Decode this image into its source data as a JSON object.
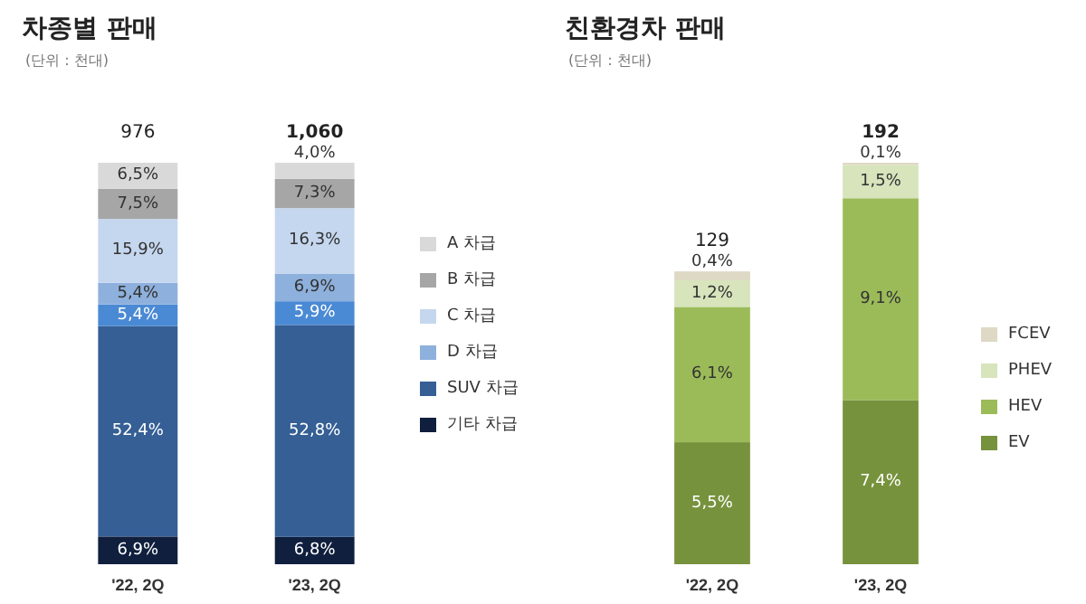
{
  "chart_data": [
    {
      "type": "bar",
      "title": "차종별 판매",
      "subtitle": "(단위 : 천대)",
      "stacked": true,
      "legend": "right",
      "categories": [
        "'22, 2Q",
        "'23, 2Q"
      ],
      "annotations": [
        {
          "text": "976",
          "x": "'22, 2Q",
          "y": 100
        },
        {
          "text": "1,060",
          "x": "'23, 2Q",
          "y": 100
        }
      ],
      "series": [
        {
          "name": "기타 차급",
          "color": "#0f1f3d",
          "values": [
            6.9,
            6.8
          ],
          "value_labels": [
            "6,9%",
            "6,8%"
          ]
        },
        {
          "name": "SUV 차급",
          "color": "#355f95",
          "values": [
            52.4,
            52.8
          ],
          "value_labels": [
            "52,4%",
            "52,8%"
          ]
        },
        {
          "color": "#4a8ad4",
          "values": [
            5.4,
            5.9
          ],
          "value_labels": [
            "5,4%",
            "5,9%"
          ]
        },
        {
          "name": "D 차급",
          "color": "#8eb0dc",
          "values": [
            5.4,
            6.9
          ],
          "value_labels": [
            "5,4%",
            "6,9%"
          ]
        },
        {
          "name": "C 차급",
          "color": "#c5d7ef",
          "values": [
            15.9,
            16.3
          ],
          "value_labels": [
            "15,9%",
            "16,3%"
          ]
        },
        {
          "name": "B 차급",
          "color": "#a6a6a6",
          "values": [
            7.5,
            7.3
          ],
          "value_labels": [
            "7,5%",
            "7,3%"
          ]
        },
        {
          "name": "A 차급",
          "color": "#d9d9d9",
          "values": [
            6.5,
            4.0
          ],
          "value_labels": [
            "6,5%",
            "4,0%"
          ]
        }
      ]
    },
    {
      "type": "bar",
      "title": "친환경차 판매",
      "subtitle": "(단위 : 천대)",
      "stacked": true,
      "legend": "right",
      "categories": [
        "'22, 2Q",
        "'23, 2Q"
      ],
      "annotations": [
        {
          "text": "129",
          "x": "'22, 2Q",
          "y": 13.2
        },
        {
          "text": "192",
          "x": "'23, 2Q",
          "y": 18.1
        }
      ],
      "series": [
        {
          "name": "EV",
          "color": "#76923c",
          "values": [
            5.5,
            7.4
          ],
          "value_labels": [
            "5,5%",
            "7,4%"
          ]
        },
        {
          "name": "HEV",
          "color": "#9bbb59",
          "values": [
            6.1,
            9.1
          ],
          "value_labels": [
            "6,1%",
            "9,1%"
          ]
        },
        {
          "name": "PHEV",
          "color": "#d7e4bc",
          "values": [
            1.2,
            1.5
          ],
          "value_labels": [
            "1,2%",
            "1,5%"
          ]
        },
        {
          "name": "FCEV",
          "color": "#ddd9c4",
          "values": [
            0.4,
            0.1
          ],
          "value_labels": [
            "0,4%",
            "0,1%"
          ]
        }
      ]
    }
  ]
}
